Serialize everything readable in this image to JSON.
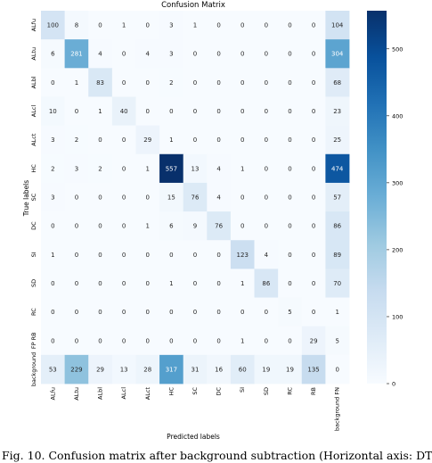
{
  "caption": "Fig. 10. Confusion matrix after background subtraction (Horizontal axis: DT",
  "chart_data": {
    "type": "heatmap",
    "title": "Confusion Matrix",
    "xlabel": "Predicted labels",
    "ylabel": "True labels",
    "x_categories": [
      "ALfu",
      "ALtu",
      "ALbl",
      "ALcl",
      "ALct",
      "HC",
      "SC",
      "DC",
      "SI",
      "SD",
      "RC",
      "RB",
      "background FN"
    ],
    "y_categories": [
      "ALfu",
      "ALtu",
      "ALbl",
      "ALcl",
      "ALct",
      "HC",
      "SC",
      "DC",
      "SI",
      "SD",
      "RC",
      "FP RB",
      "background"
    ],
    "values": [
      [
        100,
        8,
        0,
        1,
        0,
        3,
        1,
        0,
        0,
        0,
        0,
        0,
        104
      ],
      [
        6,
        281,
        4,
        0,
        4,
        3,
        0,
        0,
        0,
        0,
        0,
        0,
        304
      ],
      [
        0,
        1,
        83,
        0,
        0,
        2,
        0,
        0,
        0,
        0,
        0,
        0,
        68
      ],
      [
        10,
        0,
        1,
        40,
        0,
        0,
        0,
        0,
        0,
        0,
        0,
        0,
        23
      ],
      [
        3,
        2,
        0,
        0,
        29,
        1,
        0,
        0,
        0,
        0,
        0,
        0,
        25
      ],
      [
        2,
        3,
        2,
        0,
        1,
        557,
        13,
        4,
        1,
        0,
        0,
        0,
        474
      ],
      [
        3,
        0,
        0,
        0,
        0,
        15,
        76,
        4,
        0,
        0,
        0,
        0,
        57
      ],
      [
        0,
        0,
        0,
        0,
        1,
        6,
        9,
        76,
        0,
        0,
        0,
        0,
        86
      ],
      [
        1,
        0,
        0,
        0,
        0,
        0,
        0,
        0,
        123,
        4,
        0,
        0,
        89
      ],
      [
        0,
        0,
        0,
        0,
        0,
        1,
        0,
        0,
        1,
        86,
        0,
        0,
        70
      ],
      [
        0,
        0,
        0,
        0,
        0,
        0,
        0,
        0,
        0,
        0,
        5,
        0,
        1
      ],
      [
        0,
        0,
        0,
        0,
        0,
        0,
        0,
        0,
        1,
        0,
        0,
        29,
        5
      ],
      [
        53,
        229,
        29,
        13,
        28,
        317,
        31,
        16,
        60,
        19,
        19,
        135,
        0
      ]
    ],
    "colorbar": {
      "min": 0,
      "max": 557,
      "ticks": [
        0,
        100,
        200,
        300,
        400,
        500
      ]
    },
    "colors": {
      "low": "#f7fbff",
      "high": "#08306b",
      "dark_text": "#262626",
      "light_text": "#ffffff"
    }
  }
}
